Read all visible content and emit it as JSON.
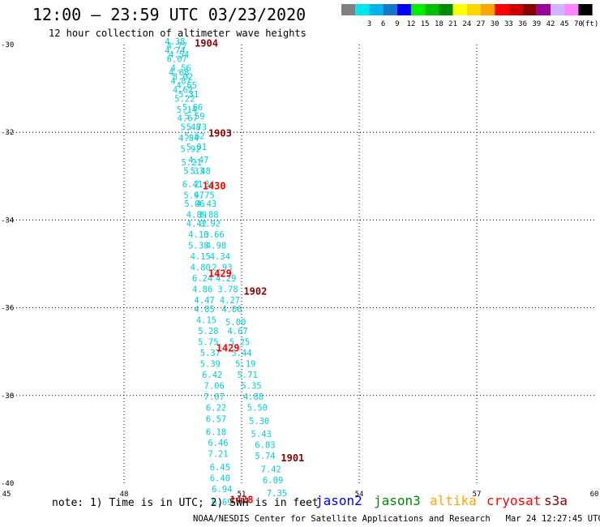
{
  "title": "12:00 — 23:59 UTC 03/23/2020",
  "subtitle": "12 hour collection of altimeter wave heights",
  "legend": {
    "unit": "(ft)",
    "bins": [
      {
        "label": "",
        "color": "#808080"
      },
      {
        "label": "3",
        "color": "#00e5ee"
      },
      {
        "label": "6",
        "color": "#00b2ee"
      },
      {
        "label": "9",
        "color": "#1874cd"
      },
      {
        "label": "12",
        "color": "#0000ff"
      },
      {
        "label": "15",
        "color": "#00ee00"
      },
      {
        "label": "18",
        "color": "#00c000"
      },
      {
        "label": "21",
        "color": "#008b00"
      },
      {
        "label": "24",
        "color": "#ffff00"
      },
      {
        "label": "27",
        "color": "#ffd700"
      },
      {
        "label": "30",
        "color": "#ffa500"
      },
      {
        "label": "33",
        "color": "#ff0000"
      },
      {
        "label": "36",
        "color": "#cd0000"
      },
      {
        "label": "39",
        "color": "#8b0000"
      },
      {
        "label": "42",
        "color": "#9a009a"
      },
      {
        "label": "45",
        "color": "#cdb5ff"
      },
      {
        "label": "70",
        "color": "#ff82ff"
      },
      {
        "label": "",
        "color": "#000000"
      }
    ]
  },
  "axes": {
    "lon_ticks": [
      "45",
      "48",
      "51",
      "54",
      "57",
      "60"
    ],
    "lat_ticks": [
      "-30",
      "-32",
      "-34",
      "-36",
      "-38",
      "-40"
    ],
    "lon_range": [
      45,
      60
    ],
    "lat_range": [
      -30,
      -40
    ]
  },
  "track_points": [
    {
      "lat": -30.0,
      "lon": 49.3,
      "label": "4.38"
    },
    {
      "lat": -30.1,
      "lon": 49.35,
      "label": "4.77"
    },
    {
      "lat": -30.2,
      "lon": 49.3,
      "label": "4.74"
    },
    {
      "lat": -30.3,
      "lon": 49.4,
      "label": "4.54"
    },
    {
      "lat": -30.4,
      "lon": 49.35,
      "label": "6.07"
    },
    {
      "lat": -30.6,
      "lon": 49.45,
      "label": "4.56"
    },
    {
      "lat": -30.7,
      "lon": 49.4,
      "label": "4.68"
    },
    {
      "lat": -30.8,
      "lon": 49.5,
      "label": "5.02"
    },
    {
      "lat": -30.9,
      "lon": 49.45,
      "label": "4.87"
    },
    {
      "lat": -31.0,
      "lon": 49.6,
      "label": "4.65"
    },
    {
      "lat": -31.1,
      "lon": 49.5,
      "label": "4.62"
    },
    {
      "lat": -31.2,
      "lon": 49.65,
      "label": "5.31"
    },
    {
      "lat": -31.3,
      "lon": 49.55,
      "label": "5.22"
    },
    {
      "lat": -31.5,
      "lon": 49.75,
      "label": "5.66"
    },
    {
      "lat": -31.55,
      "lon": 49.6,
      "label": "5.14"
    },
    {
      "lat": -31.7,
      "lon": 49.8,
      "label": "5.59"
    },
    {
      "lat": -31.75,
      "lon": 49.62,
      "label": "4.67"
    },
    {
      "lat": -31.95,
      "lon": 49.7,
      "label": "5.48"
    },
    {
      "lat": -31.95,
      "lon": 49.85,
      "label": "5.73"
    },
    {
      "lat": -32.15,
      "lon": 49.8,
      "label": "5.62"
    },
    {
      "lat": -32.2,
      "lon": 49.65,
      "label": "4.84"
    },
    {
      "lat": -32.4,
      "lon": 49.85,
      "label": "5.01"
    },
    {
      "lat": -32.45,
      "lon": 49.7,
      "label": "5.92"
    },
    {
      "lat": -32.7,
      "lon": 49.9,
      "label": "4.47"
    },
    {
      "lat": -32.75,
      "lon": 49.72,
      "label": "5.21"
    },
    {
      "lat": -32.95,
      "lon": 49.95,
      "label": "5.48"
    },
    {
      "lat": -32.95,
      "lon": 49.78,
      "label": "5.33"
    },
    {
      "lat": -33.25,
      "lon": 49.75,
      "label": "6.41"
    },
    {
      "lat": -33.25,
      "lon": 50.05,
      "label": "2.34"
    },
    {
      "lat": -33.5,
      "lon": 49.78,
      "label": "5.97"
    },
    {
      "lat": -33.5,
      "lon": 50.05,
      "label": "4.75"
    },
    {
      "lat": -33.7,
      "lon": 49.8,
      "label": "5.06"
    },
    {
      "lat": -33.7,
      "lon": 50.1,
      "label": "4.43"
    },
    {
      "lat": -33.95,
      "lon": 49.85,
      "label": "4.89"
    },
    {
      "lat": -33.95,
      "lon": 50.15,
      "label": "3.88"
    },
    {
      "lat": -34.15,
      "lon": 49.85,
      "label": "4.42"
    },
    {
      "lat": -34.15,
      "lon": 50.2,
      "label": "3.92"
    },
    {
      "lat": -34.4,
      "lon": 49.9,
      "label": "4.10"
    },
    {
      "lat": -34.4,
      "lon": 50.3,
      "label": "3.66"
    },
    {
      "lat": -34.65,
      "lon": 49.9,
      "label": "5.38"
    },
    {
      "lat": -34.65,
      "lon": 50.35,
      "label": "4.98"
    },
    {
      "lat": -34.9,
      "lon": 49.95,
      "label": "4.15"
    },
    {
      "lat": -34.9,
      "lon": 50.45,
      "label": "4.34"
    },
    {
      "lat": -35.15,
      "lon": 49.95,
      "label": "4.80"
    },
    {
      "lat": -35.15,
      "lon": 50.5,
      "label": "2.93"
    },
    {
      "lat": -35.4,
      "lon": 50.0,
      "label": "6.24"
    },
    {
      "lat": -35.4,
      "lon": 50.6,
      "label": "4.29"
    },
    {
      "lat": -35.65,
      "lon": 50.0,
      "label": "4.86"
    },
    {
      "lat": -35.65,
      "lon": 50.65,
      "label": "3.78"
    },
    {
      "lat": -35.9,
      "lon": 50.05,
      "label": "4.47"
    },
    {
      "lat": -35.9,
      "lon": 50.7,
      "label": "4.27"
    },
    {
      "lat": -36.1,
      "lon": 50.05,
      "label": "4.85"
    },
    {
      "lat": -36.1,
      "lon": 50.75,
      "label": "4.06"
    },
    {
      "lat": -36.35,
      "lon": 50.1,
      "label": "4.15"
    },
    {
      "lat": -36.4,
      "lon": 50.85,
      "label": "5.00"
    },
    {
      "lat": -36.6,
      "lon": 50.15,
      "label": "5.28"
    },
    {
      "lat": -36.6,
      "lon": 50.9,
      "label": "4.67"
    },
    {
      "lat": -36.85,
      "lon": 50.15,
      "label": "5.75"
    },
    {
      "lat": -36.85,
      "lon": 50.95,
      "label": "5.25"
    },
    {
      "lat": -37.1,
      "lon": 50.2,
      "label": "5.37"
    },
    {
      "lat": -37.1,
      "lon": 51.0,
      "label": "5.44"
    },
    {
      "lat": -37.35,
      "lon": 50.2,
      "label": "5.39"
    },
    {
      "lat": -37.35,
      "lon": 51.1,
      "label": "5.19"
    },
    {
      "lat": -37.6,
      "lon": 50.25,
      "label": "6.42"
    },
    {
      "lat": -37.6,
      "lon": 51.15,
      "label": "5.71"
    },
    {
      "lat": -37.85,
      "lon": 50.3,
      "label": "7.06"
    },
    {
      "lat": -37.85,
      "lon": 51.25,
      "label": "5.35"
    },
    {
      "lat": -38.1,
      "lon": 50.3,
      "label": "7.07"
    },
    {
      "lat": -38.1,
      "lon": 51.3,
      "label": "4.88"
    },
    {
      "lat": -38.35,
      "lon": 50.35,
      "label": "6.22"
    },
    {
      "lat": -38.35,
      "lon": 51.4,
      "label": "5.50"
    },
    {
      "lat": -38.6,
      "lon": 50.35,
      "label": "6.57"
    },
    {
      "lat": -38.65,
      "lon": 51.45,
      "label": "5.30"
    },
    {
      "lat": -38.9,
      "lon": 50.35,
      "label": "6.18"
    },
    {
      "lat": -38.95,
      "lon": 51.5,
      "label": "5.43"
    },
    {
      "lat": -39.15,
      "lon": 50.4,
      "label": "6.46"
    },
    {
      "lat": -39.2,
      "lon": 51.6,
      "label": "6.83"
    },
    {
      "lat": -39.4,
      "lon": 50.4,
      "label": "7.21"
    },
    {
      "lat": -39.45,
      "lon": 51.6,
      "label": "5.74"
    },
    {
      "lat": -39.7,
      "lon": 50.45,
      "label": "6.45"
    },
    {
      "lat": -39.75,
      "lon": 51.75,
      "label": "7.42"
    },
    {
      "lat": -39.95,
      "lon": 50.45,
      "label": "6.40"
    },
    {
      "lat": -40.0,
      "lon": 51.8,
      "label": "6.09"
    },
    {
      "lat": -40.2,
      "lon": 50.5,
      "label": "6.94"
    },
    {
      "lat": -40.3,
      "lon": 51.9,
      "label": "7.35"
    },
    {
      "lat": -40.5,
      "lon": 50.5,
      "label": "6.69"
    }
  ],
  "pass_labels": [
    {
      "lat": -30.05,
      "lon": 50.1,
      "label": "1904",
      "color": "#8b0000"
    },
    {
      "lat": -32.1,
      "lon": 50.45,
      "label": "1903",
      "color": "#8b0000"
    },
    {
      "lat": -33.3,
      "lon": 50.3,
      "label": "1430",
      "color": "#ff0000"
    },
    {
      "lat": -35.3,
      "lon": 50.45,
      "label": "1429",
      "color": "#ff0000"
    },
    {
      "lat": -35.7,
      "lon": 51.35,
      "label": "1902",
      "color": "#8b0000"
    },
    {
      "lat": -37.0,
      "lon": 50.65,
      "label": "1429",
      "color": "#ff0000"
    },
    {
      "lat": -39.5,
      "lon": 52.3,
      "label": "1901",
      "color": "#8b0000"
    },
    {
      "lat": -40.45,
      "lon": 51.0,
      "label": "1428",
      "color": "#ff0000"
    }
  ],
  "note": "note: 1) Time is in UTC; 2) SWH is in feet",
  "satellites": [
    {
      "name": "jason2",
      "color": "#0000ff"
    },
    {
      "name": "jason3",
      "color": "#008b00"
    },
    {
      "name": "altika",
      "color": "#ffa500"
    },
    {
      "name": "cryosat",
      "color": "#ff0000"
    },
    {
      "name": "s3a",
      "color": "#8b0000"
    }
  ],
  "credit": "NOAA/NESDIS Center for Satellite Applications and Research",
  "timestamp": "Mar 24 12:27:45 UTC 2020",
  "track_color": "#00ced1"
}
